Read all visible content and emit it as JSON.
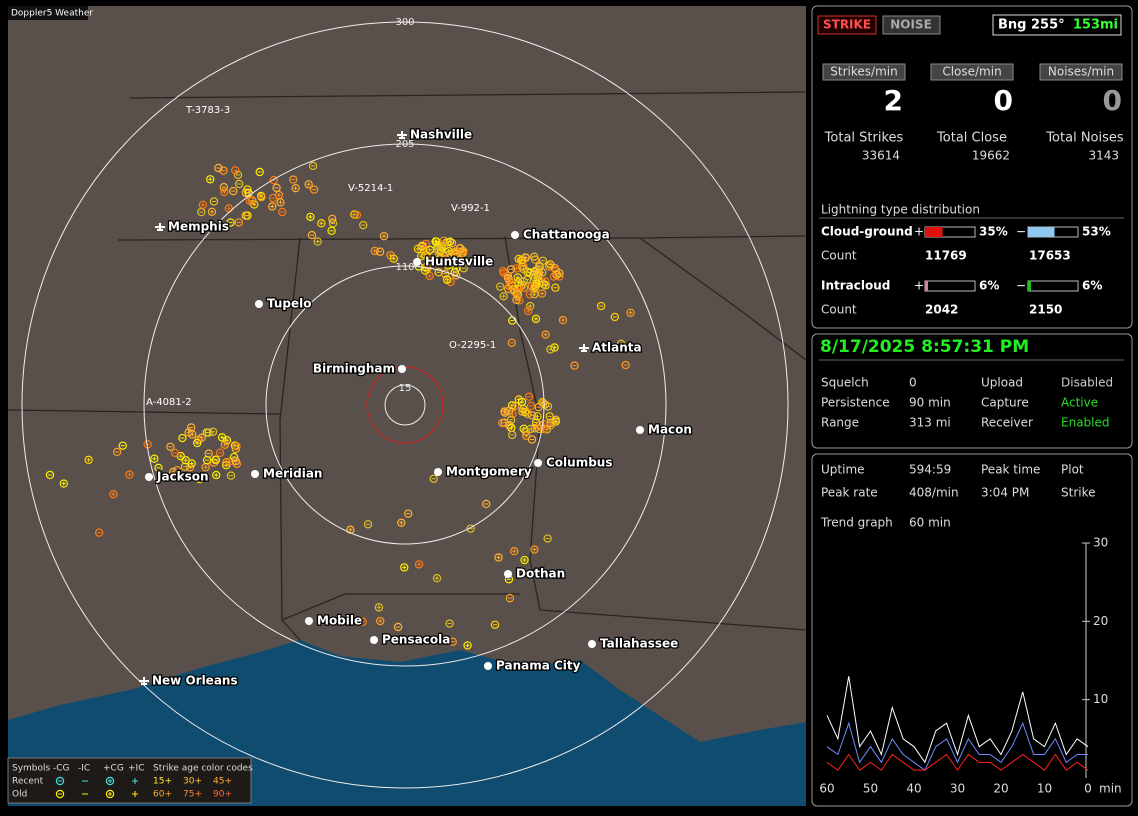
{
  "map": {
    "title": "Doppler5 Weather",
    "ring_labels": [
      "300",
      "205",
      "110",
      "15"
    ],
    "cities": [
      "Nashville",
      "Memphis",
      "Chattanooga",
      "Huntsville",
      "Tupelo",
      "Atlanta",
      "Birmingham",
      "Macon",
      "Jackson",
      "Meridian",
      "Montgomery",
      "Columbus",
      "Dothan",
      "Mobile",
      "Pensacola",
      "Tallahassee",
      "Panama City",
      "New Orleans"
    ],
    "storm_labels": [
      "T-3783-3",
      "V-5214-1",
      "V-992-1",
      "O-2295-1",
      "A-4081-2"
    ],
    "legend": {
      "symbols": "Symbols",
      "types": [
        "-CG",
        "-IC",
        "+CG",
        "+IC"
      ],
      "age_title": "Strike age color codes",
      "rows": [
        "Recent",
        "Old"
      ],
      "recent_ages": [
        "15+",
        "30+",
        "45+"
      ],
      "old_ages": [
        "60+",
        "75+",
        "90+"
      ]
    }
  },
  "header": {
    "strike": "STRIKE",
    "noise": "NOISE",
    "bearing": "Bng 255°",
    "distance": "153mi"
  },
  "rates": {
    "labels": [
      "Strikes/min",
      "Close/min",
      "Noises/min"
    ],
    "values": [
      2,
      0,
      0
    ]
  },
  "totals": {
    "labels": [
      "Total Strikes",
      "Total Close",
      "Total Noises"
    ],
    "values": [
      33614,
      19662,
      3143
    ]
  },
  "distribution": {
    "title": "Lightning type distribution",
    "count_label": "Count",
    "rows": [
      {
        "name": "Cloud-ground",
        "pos_sign": "+",
        "pos": {
          "value": 35,
          "label": "35%"
        },
        "pos_color": "#e01010",
        "neg_sign": "−",
        "neg": {
          "value": 53,
          "label": "53%"
        },
        "neg_color": "#8ec8f0",
        "counts": [
          11769,
          17653
        ]
      },
      {
        "name": "Intracloud",
        "pos_sign": "+",
        "pos": {
          "value": 6,
          "label": "6%"
        },
        "pos_color": "#e07aa8",
        "neg_sign": "−",
        "neg": {
          "value": 6,
          "label": "6%"
        },
        "neg_color": "#22c022",
        "counts": [
          2042,
          2150
        ]
      }
    ]
  },
  "datetime": "8/17/2025 8:57:31 PM",
  "settings": {
    "rows": [
      [
        "Squelch",
        "0",
        "Upload",
        "Disabled"
      ],
      [
        "Persistence",
        "90 min",
        "Capture",
        "Active"
      ],
      [
        "Range",
        "313 mi",
        "Receiver",
        "Enabled"
      ]
    ],
    "value_colors": [
      "#cccccc",
      "#22dd22",
      "#22dd22"
    ]
  },
  "stats": {
    "rows": [
      [
        "Uptime",
        "594:59",
        "Peak time",
        "Plot"
      ],
      [
        "Peak rate",
        "408/min",
        "3:04 PM",
        "Strike"
      ]
    ],
    "trend_label": "Trend graph",
    "trend_window": "60 min"
  },
  "trend": {
    "xlim": [
      60,
      0
    ],
    "xticks": [
      60,
      50,
      40,
      30,
      20,
      10,
      0
    ],
    "x_unit": "min",
    "ylim": [
      0,
      30
    ],
    "yticks": [
      10,
      20,
      30
    ],
    "x": [
      60,
      57.5,
      55,
      52.5,
      50,
      47.5,
      45,
      42.5,
      40,
      37.5,
      35,
      32.5,
      30,
      27.5,
      25,
      22.5,
      20,
      17.5,
      15,
      12.5,
      10,
      7.5,
      5,
      2.5,
      0
    ],
    "series": [
      {
        "color": "#ffffff",
        "values": [
          8,
          5,
          13,
          4,
          6,
          3,
          9,
          5,
          4,
          2,
          6,
          7,
          3,
          8,
          4,
          5,
          3,
          6,
          11,
          5,
          4,
          7,
          3,
          5,
          4
        ]
      },
      {
        "color": "#6f8cff",
        "values": [
          4,
          3,
          7,
          2,
          4,
          2,
          5,
          3,
          2,
          1,
          4,
          5,
          2,
          5,
          3,
          3,
          2,
          4,
          7,
          3,
          3,
          5,
          2,
          3,
          3
        ]
      },
      {
        "color": "#ff2020",
        "values": [
          2,
          1,
          3,
          1,
          2,
          1,
          3,
          2,
          1,
          1,
          2,
          3,
          1,
          3,
          2,
          2,
          1,
          2,
          3,
          2,
          1,
          3,
          1,
          2,
          1
        ]
      }
    ]
  }
}
